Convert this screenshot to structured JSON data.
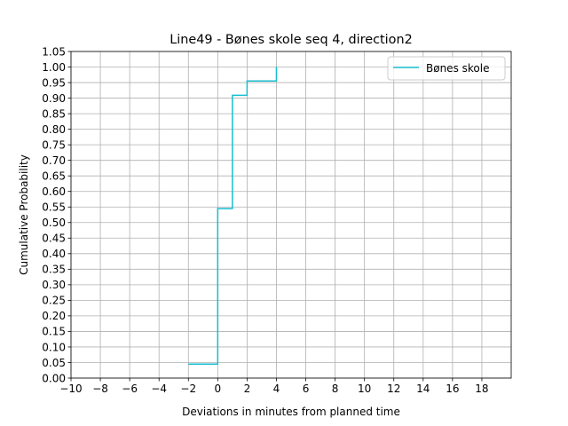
{
  "chart_data": {
    "type": "line",
    "drawstyle": "steps-post",
    "title": "Line49 - Bønes skole seq 4, direction2",
    "xlabel": "Deviations in minutes from planned time",
    "ylabel": "Cumulative Probability",
    "xlim": [
      -10,
      20
    ],
    "ylim": [
      0,
      1.05
    ],
    "xticks": [
      -10,
      -8,
      -6,
      -4,
      -2,
      0,
      2,
      4,
      6,
      8,
      10,
      12,
      14,
      16,
      18
    ],
    "xtick_labels": [
      "−10",
      "−8",
      "−6",
      "−4",
      "−2",
      "0",
      "2",
      "4",
      "6",
      "8",
      "10",
      "12",
      "14",
      "16",
      "18"
    ],
    "yticks": [
      0,
      0.05,
      0.1,
      0.15,
      0.2,
      0.25,
      0.3,
      0.35,
      0.4,
      0.45,
      0.5,
      0.55,
      0.6,
      0.65,
      0.7,
      0.75,
      0.8,
      0.85,
      0.9,
      0.95,
      1.0,
      1.05
    ],
    "ytick_labels": [
      "0.00",
      "0.05",
      "0.10",
      "0.15",
      "0.20",
      "0.25",
      "0.30",
      "0.35",
      "0.40",
      "0.45",
      "0.50",
      "0.55",
      "0.60",
      "0.65",
      "0.70",
      "0.75",
      "0.80",
      "0.85",
      "0.90",
      "0.95",
      "1.00",
      "1.05"
    ],
    "grid": true,
    "legend": {
      "location": "top-right"
    },
    "series": [
      {
        "name": "Bønes skole",
        "color": "#17becf",
        "x": [
          -2,
          0,
          0,
          1,
          1,
          2,
          2,
          4,
          4
        ],
        "y": [
          0.045,
          0.045,
          0.545,
          0.545,
          0.909,
          0.909,
          0.955,
          0.955,
          1.0
        ]
      }
    ]
  }
}
